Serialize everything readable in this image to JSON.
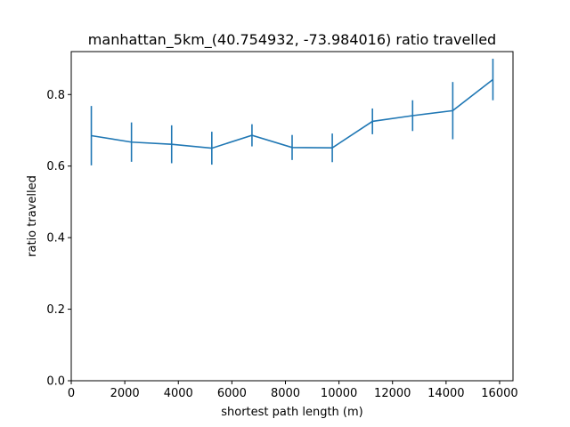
{
  "chart_data": {
    "type": "line",
    "title": "manhattan_5km_(40.754932, -73.984016) ratio travelled",
    "xlabel": "shortest path length (m)",
    "ylabel": "ratio travelled",
    "xlim": [
      0,
      16500
    ],
    "ylim": [
      0,
      0.92
    ],
    "xticks": [
      0,
      2000,
      4000,
      6000,
      8000,
      10000,
      12000,
      14000,
      16000
    ],
    "xtick_labels": [
      "0",
      "2000",
      "4000",
      "6000",
      "8000",
      "10000",
      "12000",
      "14000",
      "16000"
    ],
    "yticks": [
      0.0,
      0.2,
      0.4,
      0.6,
      0.8
    ],
    "ytick_labels": [
      "0.0",
      "0.2",
      "0.4",
      "0.6",
      "0.8"
    ],
    "grid": false,
    "color": "#1f77b4",
    "series": [
      {
        "x": [
          750,
          2250,
          3750,
          5250,
          6750,
          8250,
          9750,
          11250,
          12750,
          14250,
          15750
        ],
        "y": [
          0.685,
          0.667,
          0.661,
          0.65,
          0.686,
          0.652,
          0.651,
          0.725,
          0.741,
          0.755,
          0.842
        ],
        "yerr": [
          0.083,
          0.055,
          0.053,
          0.046,
          0.031,
          0.035,
          0.04,
          0.036,
          0.043,
          0.08,
          0.058
        ]
      }
    ]
  }
}
